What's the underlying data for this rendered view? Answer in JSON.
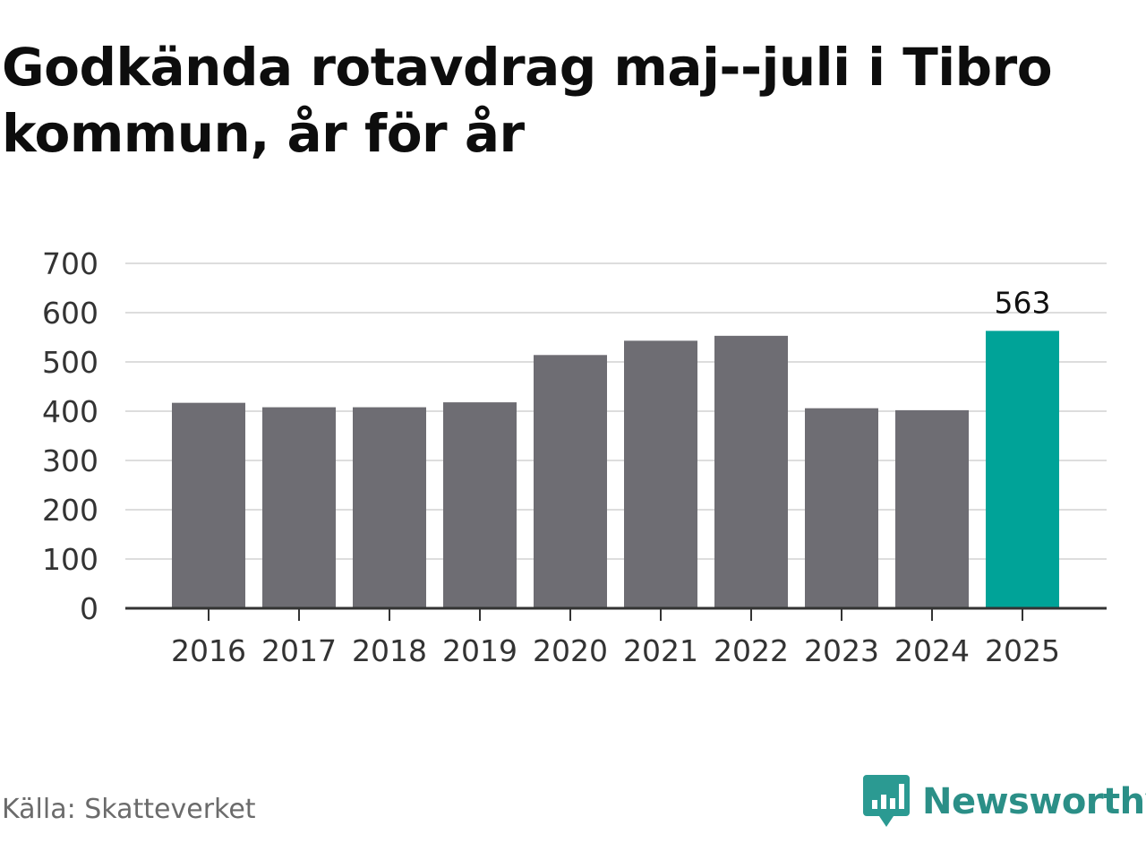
{
  "title": "Godkända rotavdrag maj--juli i Tibro kommun, år för år",
  "source": "Källa: Skatteverket",
  "brand": {
    "name": "Newsworthy",
    "icon": "newsworthy-logo-icon",
    "color": "#2b9a92"
  },
  "colors": {
    "bar": "#6e6d73",
    "highlight": "#00a398",
    "grid": "#dddddd",
    "axis": "#333333"
  },
  "chart_data": {
    "type": "bar",
    "title": "Godkända rotavdrag maj--juli i Tibro kommun, år för år",
    "xlabel": "",
    "ylabel": "",
    "categories": [
      "2016",
      "2017",
      "2018",
      "2019",
      "2020",
      "2021",
      "2022",
      "2023",
      "2024",
      "2025"
    ],
    "values": [
      417,
      408,
      408,
      418,
      514,
      543,
      553,
      406,
      402,
      563
    ],
    "ylim": [
      0,
      700
    ],
    "yticks": [
      0,
      100,
      200,
      300,
      400,
      500,
      600,
      700
    ],
    "grid": true,
    "highlight_index": 9,
    "data_labels": [
      {
        "index": 9,
        "text": "563"
      }
    ]
  }
}
